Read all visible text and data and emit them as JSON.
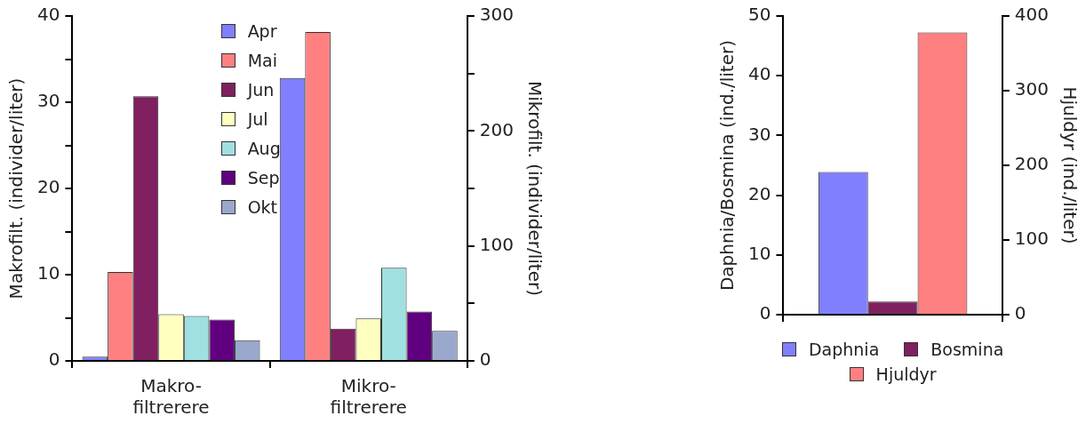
{
  "chart_data": [
    {
      "type": "bar",
      "categories": [
        "Makro-\nfiltrerere",
        "Mikro-\nfiltrerere"
      ],
      "ylabel": "Makrofilt. (individer/liter)",
      "y2label": "Mikrofilt. (individer/liter)",
      "ylim": [
        0,
        40
      ],
      "yticks": [
        0,
        {
          "value": 5,
          "label": null
        },
        10,
        {
          "value": 15,
          "label": null
        },
        20,
        {
          "value": 25,
          "label": null
        },
        30,
        {
          "value": 35,
          "label": null
        },
        40
      ],
      "y2lim": [
        0,
        300
      ],
      "y2ticks": [
        0,
        {
          "value": 50,
          "label": null
        },
        100,
        {
          "value": 150,
          "label": null
        },
        200,
        {
          "value": 250,
          "label": null
        },
        300
      ],
      "grid": false,
      "legend": "top",
      "series": [
        {
          "name": "Apr",
          "color": "#8080ff",
          "values": [
            0.5,
            null
          ]
        },
        {
          "name": "Mai",
          "color": "#ff8080",
          "values": [
            10.3,
            null
          ]
        },
        {
          "name": "Jun",
          "color": "#802060",
          "values": [
            30.7,
            null
          ]
        },
        {
          "name": "Jul",
          "color": "#ffffc0",
          "values": [
            5.4,
            null
          ]
        },
        {
          "name": "Aug",
          "color": "#a0e0e0",
          "values": [
            5.2,
            null
          ]
        },
        {
          "name": "Sep",
          "color": "#600080",
          "values": [
            4.8,
            null
          ]
        },
        {
          "name": "Okt",
          "color": "#99a8cc",
          "values": [
            2.4,
            null
          ]
        },
        {
          "color": "#8080ff",
          "axis": "y2",
          "values": [
            null,
            246
          ]
        },
        {
          "color": "#ff8080",
          "axis": "y2",
          "values": [
            null,
            286
          ]
        },
        {
          "color": "#802060",
          "axis": "y2",
          "values": [
            null,
            28
          ]
        },
        {
          "color": "#ffffc0",
          "axis": "y2",
          "values": [
            null,
            37
          ]
        },
        {
          "color": "#a0e0e0",
          "axis": "y2",
          "values": [
            null,
            81
          ]
        },
        {
          "color": "#600080",
          "axis": "y2",
          "values": [
            null,
            43
          ]
        },
        {
          "color": "#99a8cc",
          "axis": "y2",
          "values": [
            null,
            26
          ]
        }
      ]
    },
    {
      "type": "bar",
      "categories": [
        null
      ],
      "ylabel": "Daphnia/Bosmina (ind./liter)",
      "y2label": "Hjuldyr (ind./liter)",
      "ylim": [
        0,
        50
      ],
      "yticks": [
        0,
        10,
        20,
        30,
        40,
        50
      ],
      "y2lim": [
        0,
        400
      ],
      "y2ticks": [
        0,
        100,
        200,
        300,
        400
      ],
      "grid": false,
      "legend": "bottom",
      "series": [
        {
          "name": "Daphnia",
          "color": "#8080ff",
          "values": [
            23.9
          ]
        },
        {
          "name": "Bosmina",
          "color": "#802060",
          "values": [
            2.2
          ]
        },
        {
          "name": "Hjuldyr",
          "color": "#ff8080",
          "axis": "y2",
          "values": [
            378
          ]
        }
      ]
    }
  ]
}
